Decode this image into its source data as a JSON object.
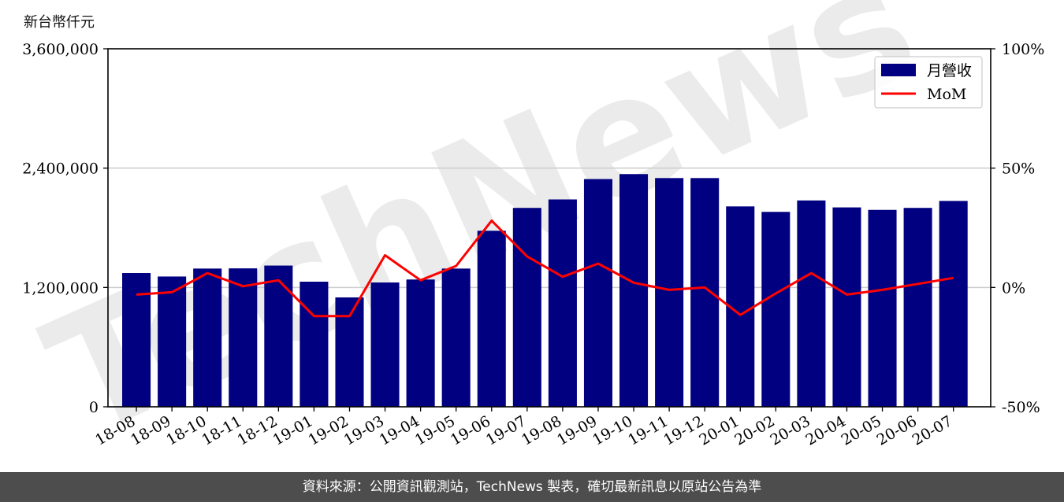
{
  "chart_data": {
    "type": "bar",
    "unit_label": "新台幣仟元",
    "categories": [
      "18-08",
      "18-09",
      "18-10",
      "18-11",
      "18-12",
      "19-01",
      "19-02",
      "19-03",
      "19-04",
      "19-05",
      "19-06",
      "19-07",
      "19-08",
      "19-09",
      "19-10",
      "19-11",
      "19-12",
      "20-01",
      "20-02",
      "20-03",
      "20-04",
      "20-05",
      "20-06",
      "20-07"
    ],
    "series": [
      {
        "name": "月營收",
        "axis": "left",
        "type": "bar",
        "color": "#000080",
        "values": [
          1345000,
          1310000,
          1390000,
          1392000,
          1420000,
          1258000,
          1100000,
          1250000,
          1280000,
          1390000,
          1770000,
          2000000,
          2085000,
          2290000,
          2340000,
          2300000,
          2300000,
          2015000,
          1960000,
          2075000,
          2005000,
          1980000,
          2000000,
          2070000
        ]
      },
      {
        "name": "MoM",
        "axis": "right",
        "type": "line",
        "color": "#ff0000",
        "values": [
          -3,
          -2,
          6,
          0.5,
          3,
          -12,
          -12,
          13.5,
          3,
          9,
          28,
          13,
          4.5,
          10,
          2,
          -1,
          0,
          -11.5,
          -2.5,
          6,
          -3,
          -1,
          1.5,
          4
        ]
      }
    ],
    "ylim_left": [
      0,
      3600000
    ],
    "yticks_left": [
      "0",
      "1,200,000",
      "2,400,000",
      "3,600,000"
    ],
    "yticks_left_values": [
      0,
      1200000,
      2400000,
      3600000
    ],
    "ylim_right": [
      -50,
      100
    ],
    "yticks_right": [
      "-50%",
      "0%",
      "50%",
      "100%"
    ],
    "yticks_right_values": [
      -50,
      0,
      50,
      100
    ],
    "grid": "horizontal",
    "legend_position": "top-right",
    "watermark": "TechNews"
  },
  "footer": {
    "source_text": "資料來源：公開資訊觀測站，TechNews 製表，確切最新訊息以原站公告為準"
  }
}
